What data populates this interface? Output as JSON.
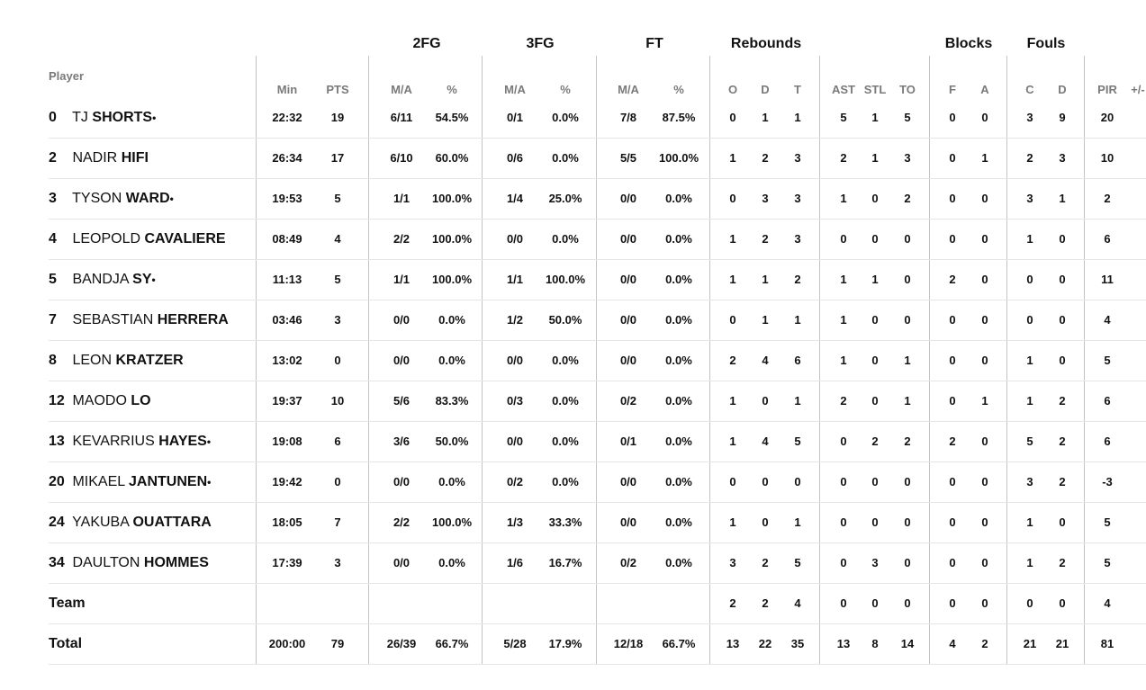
{
  "headers": {
    "player": "Player",
    "groups": [
      "2FG",
      "3FG",
      "FT",
      "Rebounds",
      "Blocks",
      "Fouls"
    ],
    "columns": [
      "Min",
      "PTS",
      "M/A",
      "%",
      "M/A",
      "%",
      "M/A",
      "%",
      "O",
      "D",
      "T",
      "AST",
      "STL",
      "TO",
      "F",
      "A",
      "C",
      "D",
      "PIR",
      "+/-"
    ]
  },
  "players": [
    {
      "num": "0",
      "first": "TJ",
      "last": "SHORTS",
      "mark": "•",
      "stats": [
        "22:32",
        "19",
        "6/11",
        "54.5%",
        "0/1",
        "0.0%",
        "7/8",
        "87.5%",
        "0",
        "1",
        "1",
        "5",
        "1",
        "5",
        "0",
        "0",
        "3",
        "9",
        "20",
        ""
      ]
    },
    {
      "num": "2",
      "first": "NADIR",
      "last": "HIFI",
      "mark": "",
      "stats": [
        "26:34",
        "17",
        "6/10",
        "60.0%",
        "0/6",
        "0.0%",
        "5/5",
        "100.0%",
        "1",
        "2",
        "3",
        "2",
        "1",
        "3",
        "0",
        "1",
        "2",
        "3",
        "10",
        ""
      ]
    },
    {
      "num": "3",
      "first": "TYSON",
      "last": "WARD",
      "mark": "•",
      "stats": [
        "19:53",
        "5",
        "1/1",
        "100.0%",
        "1/4",
        "25.0%",
        "0/0",
        "0.0%",
        "0",
        "3",
        "3",
        "1",
        "0",
        "2",
        "0",
        "0",
        "3",
        "1",
        "2",
        ""
      ]
    },
    {
      "num": "4",
      "first": "LEOPOLD",
      "last": "CAVALIERE",
      "mark": "",
      "stats": [
        "08:49",
        "4",
        "2/2",
        "100.0%",
        "0/0",
        "0.0%",
        "0/0",
        "0.0%",
        "1",
        "2",
        "3",
        "0",
        "0",
        "0",
        "0",
        "0",
        "1",
        "0",
        "6",
        ""
      ]
    },
    {
      "num": "5",
      "first": "BANDJA",
      "last": "SY",
      "mark": "•",
      "stats": [
        "11:13",
        "5",
        "1/1",
        "100.0%",
        "1/1",
        "100.0%",
        "0/0",
        "0.0%",
        "1",
        "1",
        "2",
        "1",
        "1",
        "0",
        "2",
        "0",
        "0",
        "0",
        "11",
        ""
      ]
    },
    {
      "num": "7",
      "first": "SEBASTIAN",
      "last": "HERRERA",
      "mark": "",
      "stats": [
        "03:46",
        "3",
        "0/0",
        "0.0%",
        "1/2",
        "50.0%",
        "0/0",
        "0.0%",
        "0",
        "1",
        "1",
        "1",
        "0",
        "0",
        "0",
        "0",
        "0",
        "0",
        "4",
        ""
      ]
    },
    {
      "num": "8",
      "first": "LEON",
      "last": "KRATZER",
      "mark": "",
      "stats": [
        "13:02",
        "0",
        "0/0",
        "0.0%",
        "0/0",
        "0.0%",
        "0/0",
        "0.0%",
        "2",
        "4",
        "6",
        "1",
        "0",
        "1",
        "0",
        "0",
        "1",
        "0",
        "5",
        ""
      ]
    },
    {
      "num": "12",
      "first": "MAODO",
      "last": "LO",
      "mark": "",
      "stats": [
        "19:37",
        "10",
        "5/6",
        "83.3%",
        "0/3",
        "0.0%",
        "0/2",
        "0.0%",
        "1",
        "0",
        "1",
        "2",
        "0",
        "1",
        "0",
        "1",
        "1",
        "2",
        "6",
        ""
      ]
    },
    {
      "num": "13",
      "first": "KEVARRIUS",
      "last": "HAYES",
      "mark": "•",
      "stats": [
        "19:08",
        "6",
        "3/6",
        "50.0%",
        "0/0",
        "0.0%",
        "0/1",
        "0.0%",
        "1",
        "4",
        "5",
        "0",
        "2",
        "2",
        "2",
        "0",
        "5",
        "2",
        "6",
        ""
      ]
    },
    {
      "num": "20",
      "first": "MIKAEL",
      "last": "JANTUNEN",
      "mark": "•",
      "stats": [
        "19:42",
        "0",
        "0/0",
        "0.0%",
        "0/2",
        "0.0%",
        "0/0",
        "0.0%",
        "0",
        "0",
        "0",
        "0",
        "0",
        "0",
        "0",
        "0",
        "3",
        "2",
        "-3",
        ""
      ]
    },
    {
      "num": "24",
      "first": "YAKUBA",
      "last": "OUATTARA",
      "mark": "",
      "stats": [
        "18:05",
        "7",
        "2/2",
        "100.0%",
        "1/3",
        "33.3%",
        "0/0",
        "0.0%",
        "1",
        "0",
        "1",
        "0",
        "0",
        "0",
        "0",
        "0",
        "1",
        "0",
        "5",
        ""
      ]
    },
    {
      "num": "34",
      "first": "DAULTON",
      "last": "HOMMES",
      "mark": "",
      "stats": [
        "17:39",
        "3",
        "0/0",
        "0.0%",
        "1/6",
        "16.7%",
        "0/2",
        "0.0%",
        "3",
        "2",
        "5",
        "0",
        "3",
        "0",
        "0",
        "0",
        "1",
        "2",
        "5",
        ""
      ]
    }
  ],
  "team": {
    "label": "Team",
    "stats": [
      "",
      "",
      "",
      "",
      "",
      "",
      "",
      "",
      "2",
      "2",
      "4",
      "0",
      "0",
      "0",
      "0",
      "0",
      "0",
      "0",
      "4",
      ""
    ]
  },
  "total": {
    "label": "Total",
    "stats": [
      "200:00",
      "79",
      "26/39",
      "66.7%",
      "5/28",
      "17.9%",
      "12/18",
      "66.7%",
      "13",
      "22",
      "35",
      "13",
      "8",
      "14",
      "4",
      "2",
      "21",
      "21",
      "81",
      ""
    ]
  }
}
